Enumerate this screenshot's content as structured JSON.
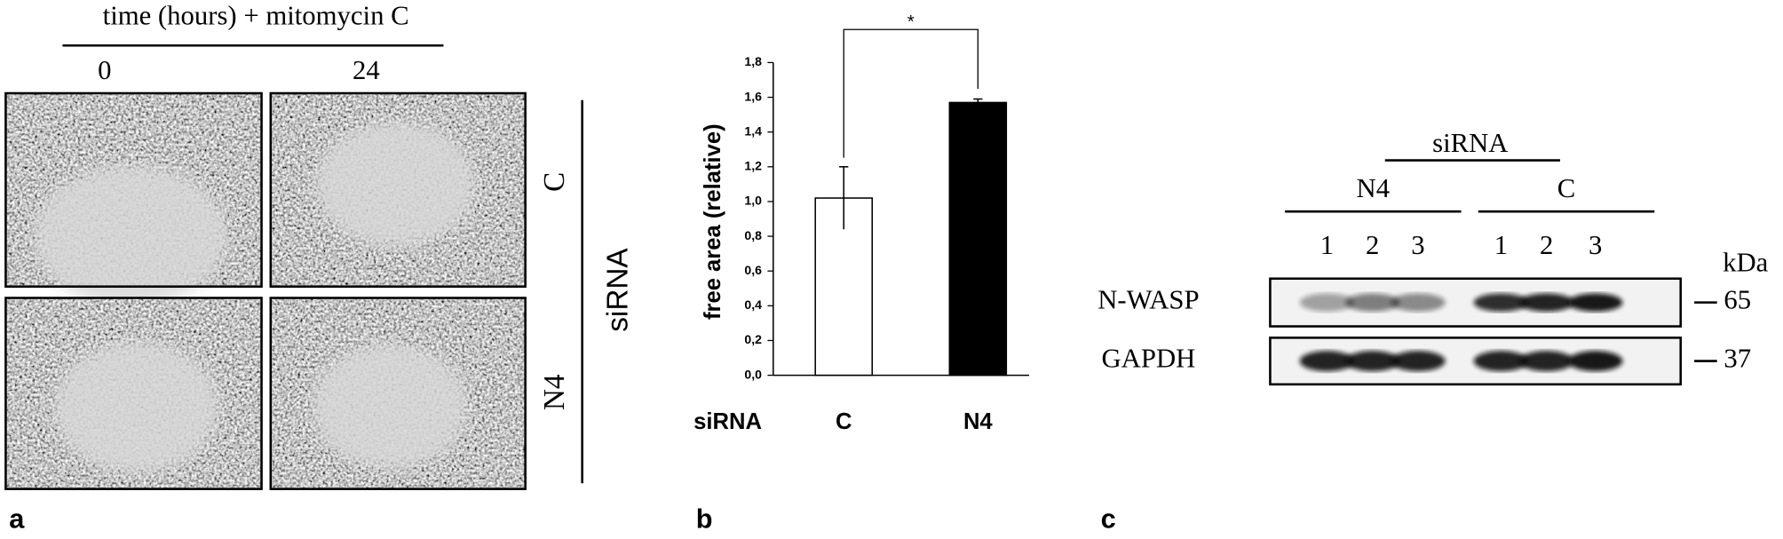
{
  "panel_a": {
    "label": "a",
    "title": "time (hours) + mitomycin C",
    "timepoints": [
      "0",
      "24"
    ],
    "rows": [
      "C",
      "N4"
    ],
    "group_label": "siRNA"
  },
  "chart_data": {
    "type": "bar",
    "label": "b",
    "ylabel": "free area (relative)",
    "xlabel": "siRNA",
    "categories": [
      "C",
      "N4"
    ],
    "values": [
      1.02,
      1.57
    ],
    "errors": [
      0.18,
      0.02
    ],
    "colors": [
      "#ffffff",
      "#000000"
    ],
    "ylim": [
      0,
      1.8
    ],
    "yticks": [
      {
        "value": 0,
        "label": "0,0"
      },
      {
        "value": 0.2,
        "label": "0,2"
      },
      {
        "value": 0.4,
        "label": "0,4"
      },
      {
        "value": 0.6,
        "label": "0,6"
      },
      {
        "value": 0.8,
        "label": "0,8"
      },
      {
        "value": 1,
        "label": "1,0"
      },
      {
        "value": 1.2,
        "label": "1,2"
      },
      {
        "value": 1.4,
        "label": "1,4"
      },
      {
        "value": 1.6,
        "label": "1,6"
      },
      {
        "value": 1.8,
        "label": "1,8"
      }
    ],
    "significance": "*"
  },
  "panel_c": {
    "label": "c",
    "group_label": "siRNA",
    "groups": [
      {
        "name": "N4",
        "lanes": [
          "1",
          "2",
          "3"
        ]
      },
      {
        "name": "C",
        "lanes": [
          "1",
          "2",
          "3"
        ]
      }
    ],
    "proteins": [
      "N-WASP",
      "GAPDH"
    ],
    "unit": "kDa",
    "weights": [
      65,
      37
    ]
  }
}
